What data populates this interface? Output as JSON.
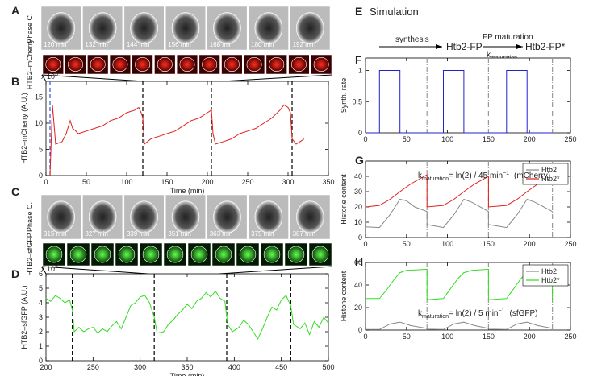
{
  "panel_letters": [
    "A",
    "B",
    "C",
    "D",
    "E",
    "F",
    "G",
    "H"
  ],
  "image_strips": [
    {
      "ylabel": "Phase C.",
      "labels": [
        "120 min",
        "132 min",
        "144 min",
        "156 min",
        "168 min",
        "180 min",
        "192 min"
      ]
    },
    {
      "ylabel": "HTB2–mCherry"
    },
    {
      "ylabel": "Phase C.",
      "labels": [
        "315 min",
        "327 min",
        "339 min",
        "351 min",
        "363 min",
        "375 min",
        "387 min"
      ]
    },
    {
      "ylabel": "HTB2–sfGFP"
    }
  ],
  "simulation": {
    "title": "Simulation",
    "synthesis": "synthesis",
    "species": "Htb2-FP",
    "maturation": "FP maturation",
    "rate_symbol": "k",
    "rate_subscript": "maturation",
    "product": "Htb2-FP*"
  },
  "chart_data": [
    {
      "type": "line",
      "xlabel": "Time (min)",
      "ylabel": "HTB2–mCherry (A.U.)",
      "multiplier": {
        "text": "x 10",
        "exponent": "5"
      },
      "xlim": [
        0,
        350
      ],
      "xticks": [
        0,
        50,
        100,
        150,
        200,
        250,
        300,
        350
      ],
      "ylim": [
        0,
        18
      ],
      "yticks": [
        0,
        5,
        10,
        15
      ],
      "vlines": [
        {
          "x": [
            5
          ],
          "color": "#3355dd",
          "style": "dashed"
        },
        {
          "x": [
            120,
            205,
            305
          ],
          "color": "#000000",
          "style": "dashed"
        }
      ],
      "series": [
        {
          "color": "#e0201b",
          "x": [
            5,
            8,
            12,
            20,
            25,
            30,
            33,
            37,
            40,
            50,
            60,
            70,
            80,
            90,
            100,
            110,
            115,
            118,
            120,
            122,
            130,
            140,
            150,
            160,
            170,
            180,
            190,
            200,
            205,
            207,
            210,
            220,
            230,
            240,
            250,
            260,
            270,
            280,
            290,
            295,
            300,
            303,
            305,
            310,
            315,
            320
          ],
          "values": [
            0,
            13.5,
            6,
            6.5,
            8,
            10.5,
            9,
            8.5,
            8,
            8.5,
            9,
            9.5,
            10.5,
            11,
            12,
            12.5,
            13,
            12,
            11,
            6,
            7,
            7.5,
            8,
            8.5,
            9.5,
            10.5,
            11,
            12,
            12.5,
            8,
            6,
            6.5,
            7,
            8,
            8.5,
            9,
            10,
            11,
            12.5,
            13.5,
            13,
            12,
            7,
            6,
            6.5,
            7
          ]
        }
      ]
    },
    {
      "type": "line",
      "xlabel": "Time (min)",
      "ylabel": "HTB2–sfGFP (A.U.)",
      "multiplier": {
        "text": "x 10",
        "exponent": "5"
      },
      "xlim": [
        200,
        500
      ],
      "xticks": [
        200,
        250,
        300,
        350,
        400,
        450,
        500
      ],
      "ylim": [
        0,
        6
      ],
      "yticks": [
        0,
        1,
        2,
        3,
        4,
        5,
        6
      ],
      "vlines": [
        {
          "x": [
            228,
            315,
            392,
            460
          ],
          "color": "#000000",
          "style": "dashed"
        }
      ],
      "series": [
        {
          "color": "#33dd22",
          "x": [
            200,
            205,
            210,
            215,
            220,
            225,
            228,
            230,
            235,
            240,
            245,
            250,
            255,
            260,
            265,
            270,
            275,
            280,
            285,
            290,
            295,
            300,
            305,
            310,
            315,
            318,
            325,
            330,
            335,
            340,
            345,
            350,
            355,
            360,
            365,
            370,
            375,
            380,
            385,
            390,
            393,
            398,
            405,
            410,
            415,
            420,
            425,
            430,
            435,
            440,
            445,
            450,
            455,
            460,
            463,
            470,
            475,
            480,
            485,
            490,
            495,
            500
          ],
          "values": [
            4.3,
            4.1,
            4.5,
            4.3,
            4.0,
            4.2,
            3.5,
            2.0,
            2.3,
            2.0,
            2.2,
            2.3,
            1.9,
            2.2,
            2.0,
            2.4,
            2.7,
            2.2,
            3.0,
            3.8,
            4.0,
            4.4,
            4.5,
            4.0,
            3.0,
            1.9,
            2.0,
            2.5,
            2.8,
            3.2,
            3.5,
            3.9,
            3.6,
            4.1,
            4.3,
            4.7,
            4.4,
            4.8,
            4.3,
            4.1,
            2.5,
            2.0,
            2.3,
            2.8,
            2.5,
            2.0,
            1.5,
            2.2,
            3.0,
            3.7,
            3.5,
            4.2,
            4.5,
            3.8,
            2.5,
            2.2,
            2.6,
            1.8,
            2.7,
            2.3,
            3.0,
            2.6
          ]
        }
      ]
    },
    {
      "type": "line",
      "ylabel": "Synth. rate",
      "xlim": [
        0,
        250
      ],
      "xticks": [
        0,
        50,
        100,
        150,
        200,
        250
      ],
      "ylim": [
        0,
        1.2
      ],
      "yticks": [
        0,
        0.5,
        1
      ],
      "vlines": [
        {
          "x": [
            75,
            150,
            228
          ],
          "color": "#999999",
          "style": "dashdot"
        }
      ],
      "series": [
        {
          "color": "#2222cc",
          "x": [
            0,
            17,
            17,
            42,
            42,
            95,
            95,
            120,
            120,
            172,
            172,
            197,
            197,
            228
          ],
          "values": [
            0,
            0,
            1,
            1,
            0,
            0,
            1,
            1,
            0,
            0,
            1,
            1,
            0,
            0
          ]
        }
      ]
    },
    {
      "type": "line",
      "ylabel": "Histone content",
      "legend": "upper right",
      "annotation": {
        "symbol": "k",
        "subscript": "maturation",
        "text": "= ln(2) / 45 min",
        "superscript": "−1",
        "suffix": "(mCherry)"
      },
      "xlim": [
        0,
        250
      ],
      "xticks": [
        0,
        50,
        100,
        150,
        200,
        250
      ],
      "ylim": [
        0,
        50
      ],
      "yticks": [
        0,
        10,
        20,
        30,
        40
      ],
      "vlines": [
        {
          "x": [
            75,
            150,
            228
          ],
          "color": "#999999",
          "style": "dashdot"
        }
      ],
      "series": [
        {
          "name": "Htb2",
          "color": "#888888",
          "x": [
            0,
            17,
            30,
            42,
            50,
            60,
            75,
            75,
            95,
            108,
            120,
            130,
            150,
            150,
            172,
            185,
            197,
            207,
            228
          ],
          "values": [
            7,
            6.5,
            15,
            25,
            24,
            20,
            17,
            8.5,
            6.5,
            15,
            25,
            23,
            17,
            8.5,
            6.5,
            15,
            25,
            23,
            17
          ]
        },
        {
          "name": "Htb2*",
          "color": "#e0201b",
          "x": [
            0,
            17,
            30,
            42,
            55,
            75,
            75,
            95,
            108,
            120,
            133,
            150,
            150,
            172,
            185,
            197,
            210,
            228
          ],
          "values": [
            20,
            21,
            25,
            30,
            35,
            41,
            20,
            21,
            25,
            30,
            35,
            40,
            20,
            21,
            25,
            30,
            35,
            40
          ]
        }
      ]
    },
    {
      "type": "line",
      "ylabel": "Histone content",
      "legend": "upper right",
      "annotation": {
        "symbol": "k",
        "subscript": "maturation",
        "text": "= ln(2) / 5 min",
        "superscript": "−1",
        "suffix": "(sfGFP)"
      },
      "xlim": [
        0,
        250
      ],
      "xticks": [
        0,
        50,
        100,
        150,
        200,
        250
      ],
      "ylim": [
        0,
        60
      ],
      "yticks": [
        0,
        20,
        40,
        60
      ],
      "vlines": [
        {
          "x": [
            75,
            150,
            228
          ],
          "color": "#999999",
          "style": "dashdot"
        }
      ],
      "series": [
        {
          "name": "Htb2",
          "color": "#888888",
          "x": [
            0,
            17,
            30,
            42,
            55,
            75,
            75,
            95,
            108,
            120,
            133,
            150,
            150,
            172,
            185,
            197,
            210,
            228
          ],
          "values": [
            0.5,
            0.5,
            5.5,
            7,
            4,
            1.5,
            0.8,
            0.5,
            5.5,
            7,
            4,
            1.5,
            0.8,
            0.5,
            5.5,
            7,
            4,
            1.5
          ]
        },
        {
          "name": "Htb2*",
          "color": "#33dd22",
          "x": [
            0,
            17,
            25,
            35,
            42,
            50,
            75,
            75,
            95,
            103,
            113,
            120,
            130,
            150,
            150,
            172,
            180,
            190,
            197,
            207,
            228,
            228
          ],
          "values": [
            28,
            28,
            35,
            45,
            51,
            53,
            54,
            27,
            28,
            36,
            46,
            51,
            53,
            54,
            27,
            28,
            36,
            46,
            51,
            53,
            54,
            27
          ]
        }
      ]
    }
  ]
}
